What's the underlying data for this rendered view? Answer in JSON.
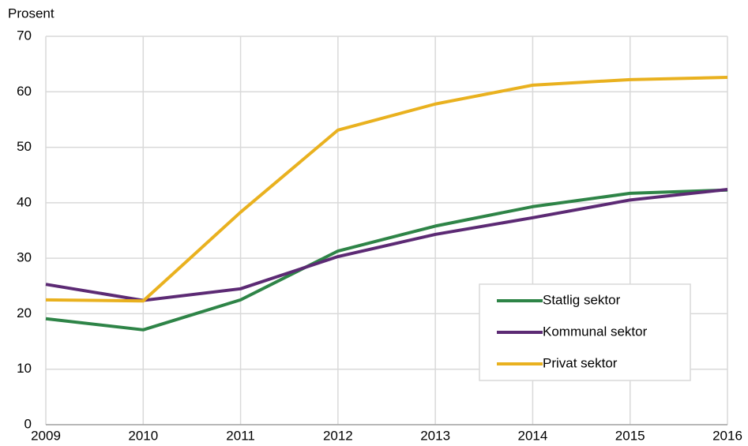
{
  "chart_data": {
    "type": "line",
    "y_label": "Prosent",
    "x": [
      2009,
      2010,
      2011,
      2012,
      2013,
      2014,
      2015,
      2016
    ],
    "xlim": [
      2009,
      2016
    ],
    "xticks": [
      2009,
      2010,
      2011,
      2012,
      2013,
      2014,
      2015,
      2016
    ],
    "ylim": [
      0,
      70
    ],
    "yticks": [
      0,
      10,
      20,
      30,
      40,
      50,
      60,
      70
    ],
    "grid": true,
    "legend": "lower-right",
    "series": [
      {
        "name": "Statlig sektor",
        "color": "#2e8447",
        "values": [
          19.1,
          17.1,
          22.5,
          31.3,
          35.8,
          39.3,
          41.7,
          42.3
        ]
      },
      {
        "name": "Kommunal sektor",
        "color": "#5c2a74",
        "values": [
          25.3,
          22.4,
          24.5,
          30.3,
          34.3,
          37.3,
          40.5,
          42.4
        ]
      },
      {
        "name": "Privat sektor",
        "color": "#e9b11f",
        "values": [
          22.5,
          22.3,
          38.3,
          53.1,
          57.8,
          61.2,
          62.2,
          62.6
        ]
      }
    ]
  }
}
